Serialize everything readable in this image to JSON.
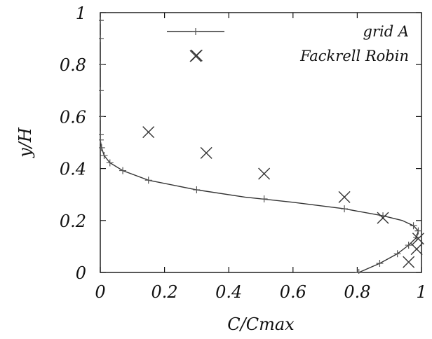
{
  "chart_data": {
    "type": "line",
    "xlabel": "C/Cmax",
    "ylabel": "y/H",
    "xlim": [
      0,
      1
    ],
    "ylim": [
      0,
      1
    ],
    "x_ticks": [
      0,
      0.2,
      0.4,
      0.6,
      0.8,
      1
    ],
    "y_ticks": [
      0,
      0.2,
      0.4,
      0.6,
      0.8,
      1
    ],
    "x_tick_labels": [
      "0",
      "0.2",
      "0.4",
      "0.6",
      "0.8",
      "1"
    ],
    "y_tick_labels": [
      "0",
      "0.2",
      "0.4",
      "0.6",
      "0.8",
      "1"
    ],
    "grid": false,
    "legend_position": "top-right",
    "series": [
      {
        "name": "grid A",
        "style": "line-with-plus-markers",
        "color": "#333333",
        "points": [
          [
            0.805,
            0.0
          ],
          [
            0.87,
            0.035
          ],
          [
            0.925,
            0.072
          ],
          [
            0.96,
            0.105
          ],
          [
            0.985,
            0.135
          ],
          [
            0.99,
            0.16
          ],
          [
            0.975,
            0.18
          ],
          [
            0.94,
            0.2
          ],
          [
            0.88,
            0.218
          ],
          [
            0.76,
            0.245
          ],
          [
            0.6,
            0.27
          ],
          [
            0.45,
            0.29
          ],
          [
            0.3,
            0.318
          ],
          [
            0.15,
            0.355
          ],
          [
            0.07,
            0.392
          ],
          [
            0.03,
            0.422
          ],
          [
            0.012,
            0.45
          ],
          [
            0.004,
            0.48
          ],
          [
            0.0,
            0.51
          ],
          [
            0.0,
            0.55
          ],
          [
            0.0,
            0.6
          ],
          [
            0.0,
            0.7
          ],
          [
            0.0,
            0.8
          ],
          [
            0.0,
            0.9
          ],
          [
            0.0,
            1.0
          ]
        ],
        "marker_points": [
          [
            0.805,
            0.0
          ],
          [
            0.87,
            0.035
          ],
          [
            0.925,
            0.072
          ],
          [
            0.96,
            0.105
          ],
          [
            0.985,
            0.135
          ],
          [
            0.99,
            0.16
          ],
          [
            0.975,
            0.18
          ],
          [
            0.88,
            0.218
          ],
          [
            0.76,
            0.245
          ],
          [
            0.51,
            0.283
          ],
          [
            0.3,
            0.318
          ],
          [
            0.15,
            0.355
          ],
          [
            0.07,
            0.392
          ],
          [
            0.03,
            0.422
          ],
          [
            0.012,
            0.45
          ],
          [
            0.004,
            0.48
          ],
          [
            0.0,
            0.51
          ],
          [
            0.0,
            0.53
          ],
          [
            0.0,
            0.6
          ],
          [
            0.0,
            0.7
          ],
          [
            0.0,
            0.8
          ],
          [
            0.0,
            0.9
          ],
          [
            0.0,
            0.97
          ]
        ]
      },
      {
        "name": "Fackrell Robin",
        "style": "x-markers",
        "color": "#333333",
        "points": [
          [
            0.3,
            0.835
          ],
          [
            0.15,
            0.54
          ],
          [
            0.33,
            0.46
          ],
          [
            0.51,
            0.38
          ],
          [
            0.76,
            0.29
          ],
          [
            0.88,
            0.21
          ],
          [
            0.99,
            0.13
          ],
          [
            0.985,
            0.09
          ],
          [
            0.96,
            0.04
          ]
        ]
      }
    ]
  }
}
